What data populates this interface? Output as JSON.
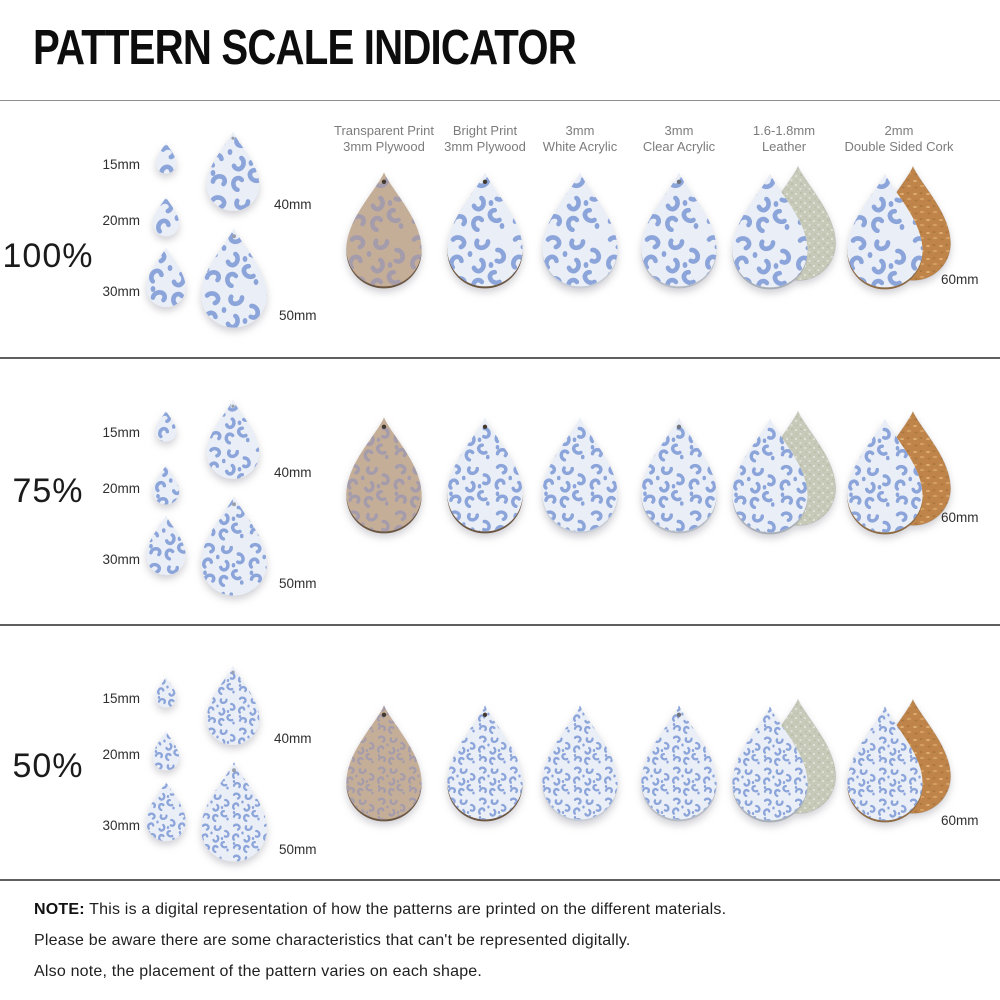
{
  "title": "PATTERN SCALE INDICATOR",
  "columns": [
    {
      "id": "transparent-print-plywood",
      "line1": "Transparent Print",
      "line2": "3mm Plywood"
    },
    {
      "id": "bright-print-plywood",
      "line1": "Bright Print",
      "line2": "3mm Plywood"
    },
    {
      "id": "white-acrylic",
      "line1": "3mm",
      "line2": "White Acrylic"
    },
    {
      "id": "clear-acrylic",
      "line1": "3mm",
      "line2": "Clear Acrylic"
    },
    {
      "id": "leather",
      "line1": "1.6-1.8mm",
      "line2": "Leather"
    },
    {
      "id": "double-sided-cork",
      "line1": "2mm",
      "line2": "Double Sided Cork"
    }
  ],
  "rows": [
    {
      "scale_label": "100%",
      "pattern_scale": 1.0,
      "sizes": [
        "15mm",
        "20mm",
        "30mm",
        "40mm",
        "50mm"
      ],
      "right_size_label": "60mm"
    },
    {
      "scale_label": "75%",
      "pattern_scale": 0.75,
      "sizes": [
        "15mm",
        "20mm",
        "30mm",
        "40mm",
        "50mm"
      ],
      "right_size_label": "60mm"
    },
    {
      "scale_label": "50%",
      "pattern_scale": 0.5,
      "sizes": [
        "15mm",
        "20mm",
        "30mm",
        "40mm",
        "50mm"
      ],
      "right_size_label": "60mm"
    }
  ],
  "materials": {
    "transparent-print-plywood": {
      "scheme": "mauve",
      "hole": "#42392f",
      "edge": "#6b5642",
      "backing": null
    },
    "bright-print-plywood": {
      "scheme": "blue",
      "hole": "#42392f",
      "edge": "#6b5642",
      "backing": null
    },
    "white-acrylic": {
      "scheme": "blue",
      "hole": null,
      "edge": "#c9ced6",
      "backing": null
    },
    "clear-acrylic": {
      "scheme": "blue",
      "hole": "#70747c",
      "edge": "#b7bcc4",
      "backing": null
    },
    "leather": {
      "scheme": "blue",
      "hole": null,
      "edge": "#a9afb7",
      "backing": "suede"
    },
    "double-sided-cork": {
      "scheme": "blue",
      "hole": null,
      "edge": "#8d6b45",
      "backing": "cork"
    }
  },
  "colors": {
    "blue_base": "#eaeef6",
    "blue_spot": "#8ba4da",
    "mauve_base": "#c5ae98",
    "mauve_spot": "#a59cab",
    "suede_base": "#c7cab8",
    "cork_base": "#bf8449",
    "heading_text": "#0d0d0d",
    "muted_text": "#7c7c7c",
    "label_text": "#2f2f2f",
    "divider": "#5f5f5f"
  },
  "note": {
    "label": "NOTE:",
    "lines": [
      "This is a digital representation of how the patterns are printed on the different materials.",
      "Please be aware there are some characteristics that can't be represented digitally.",
      "Also note, the placement of the pattern varies on each shape."
    ]
  }
}
